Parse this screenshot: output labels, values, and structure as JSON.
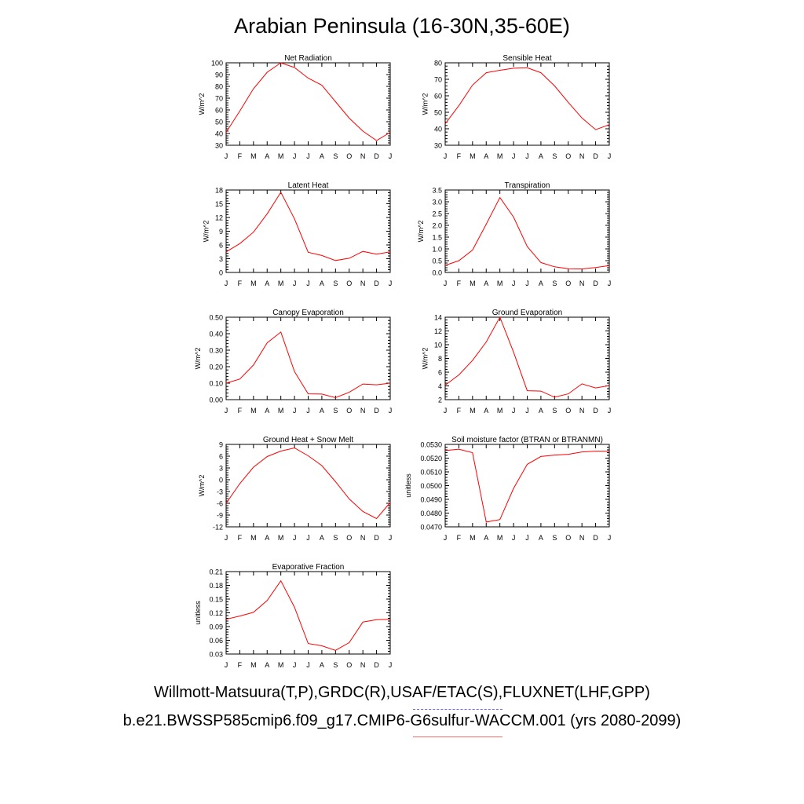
{
  "title": "Arabian Peninsula (16-30N,35-60E)",
  "footer": {
    "observations": "Willmott-Matsuura(T,P),GRDC(R),USAF/ETAC(S),FLUXNET(LHF,GPP)",
    "case": "b.e21.BWSSP585cmip6.f09_g17.CMIP6-G6sulfur-WACCM.001 (yrs 2080-2099)"
  },
  "colors": {
    "line": "#ff0000",
    "observations_legend": "#6a6aff",
    "case_legend": "#ff6a6a"
  },
  "chart_data": [
    {
      "type": "line",
      "title": "Net Radiation",
      "ylabel": "W/m^2",
      "categories": [
        "J",
        "F",
        "M",
        "A",
        "M",
        "J",
        "J",
        "A",
        "S",
        "O",
        "N",
        "D",
        "J"
      ],
      "ylim": [
        30,
        100
      ],
      "yticks": [
        "30",
        "40",
        "50",
        "60",
        "70",
        "80",
        "90",
        "100"
      ],
      "series": [
        {
          "values": [
            41,
            59,
            78,
            92,
            100,
            96,
            87,
            81,
            67,
            53,
            42,
            34,
            41
          ]
        }
      ]
    },
    {
      "type": "line",
      "title": "Sensible Heat",
      "ylabel": "W/m^2",
      "categories": [
        "J",
        "F",
        "M",
        "A",
        "M",
        "J",
        "J",
        "A",
        "S",
        "O",
        "N",
        "D",
        "J"
      ],
      "ylim": [
        30,
        80
      ],
      "yticks": [
        "30",
        "40",
        "50",
        "60",
        "70",
        "80"
      ],
      "series": [
        {
          "values": [
            43,
            54,
            66.5,
            74,
            75.5,
            76.7,
            77,
            74,
            66,
            56,
            46.5,
            39.5,
            42.5
          ]
        }
      ]
    },
    {
      "type": "line",
      "title": "Latent Heat",
      "ylabel": "W/m^2",
      "categories": [
        "J",
        "F",
        "M",
        "A",
        "M",
        "J",
        "J",
        "A",
        "S",
        "O",
        "N",
        "D",
        "J"
      ],
      "ylim": [
        0,
        18
      ],
      "yticks": [
        "0",
        "3",
        "6",
        "9",
        "12",
        "15",
        "18"
      ],
      "series": [
        {
          "values": [
            4.5,
            6.3,
            8.8,
            12.8,
            17.5,
            11.7,
            4.4,
            3.7,
            2.6,
            3.1,
            4.6,
            4.0,
            4.5
          ]
        }
      ]
    },
    {
      "type": "line",
      "title": "Transpiration",
      "ylabel": "W/m^2",
      "categories": [
        "J",
        "F",
        "M",
        "A",
        "M",
        "J",
        "J",
        "A",
        "S",
        "O",
        "N",
        "D",
        "J"
      ],
      "ylim": [
        0,
        3.5
      ],
      "yticks": [
        "0.0",
        "0.5",
        "1.0",
        "1.5",
        "2.0",
        "2.5",
        "3.0",
        "3.5"
      ],
      "series": [
        {
          "values": [
            0.3,
            0.5,
            0.95,
            2.05,
            3.18,
            2.35,
            1.1,
            0.42,
            0.24,
            0.16,
            0.15,
            0.21,
            0.29
          ]
        }
      ]
    },
    {
      "type": "line",
      "title": "Canopy Evaporation",
      "ylabel": "W/m^2",
      "categories": [
        "J",
        "F",
        "M",
        "A",
        "M",
        "J",
        "J",
        "A",
        "S",
        "O",
        "N",
        "D",
        "J"
      ],
      "ylim": [
        0,
        0.5
      ],
      "yticks": [
        "0.00",
        "0.10",
        "0.20",
        "0.30",
        "0.40",
        "0.50"
      ],
      "series": [
        {
          "values": [
            0.1,
            0.125,
            0.21,
            0.345,
            0.41,
            0.17,
            0.035,
            0.034,
            0.012,
            0.045,
            0.095,
            0.09,
            0.1
          ]
        }
      ]
    },
    {
      "type": "line",
      "title": "Ground Evaporation",
      "ylabel": "W/m^2",
      "categories": [
        "J",
        "F",
        "M",
        "A",
        "M",
        "J",
        "J",
        "A",
        "S",
        "O",
        "N",
        "D",
        "J"
      ],
      "ylim": [
        2,
        14
      ],
      "yticks": [
        "2",
        "4",
        "6",
        "8",
        "10",
        "12",
        "14"
      ],
      "series": [
        {
          "values": [
            4.1,
            5.6,
            7.7,
            10.4,
            14,
            8.9,
            3.3,
            3.25,
            2.35,
            2.85,
            4.3,
            3.7,
            4.05
          ]
        }
      ]
    },
    {
      "type": "line",
      "title": "Ground Heat + Snow Melt",
      "ylabel": "W/m^2",
      "categories": [
        "J",
        "F",
        "M",
        "A",
        "M",
        "J",
        "J",
        "A",
        "S",
        "O",
        "N",
        "D",
        "J"
      ],
      "ylim": [
        -12,
        9
      ],
      "yticks": [
        "-12",
        "-9",
        "-6",
        "-3",
        "0",
        "3",
        "6",
        "9"
      ],
      "series": [
        {
          "values": [
            -6,
            -1,
            3.2,
            5.9,
            7.3,
            8.1,
            6.1,
            3.6,
            -0.5,
            -4.9,
            -8.1,
            -9.9,
            -5.8
          ]
        }
      ]
    },
    {
      "type": "line",
      "title": "Soil moisture factor (BTRAN or BTRANMN)",
      "ylabel": "unitless",
      "categories": [
        "J",
        "F",
        "M",
        "A",
        "M",
        "J",
        "J",
        "A",
        "S",
        "O",
        "N",
        "D",
        "J"
      ],
      "ylim": [
        0.047,
        0.053
      ],
      "yticks": [
        "0.0470",
        "0.0480",
        "0.0490",
        "0.0500",
        "0.0510",
        "0.0520",
        "0.0530"
      ],
      "series": [
        {
          "values": [
            0.05255,
            0.05265,
            0.0524,
            0.04735,
            0.04753,
            0.0498,
            0.05155,
            0.05212,
            0.05222,
            0.05228,
            0.05245,
            0.05251,
            0.0525
          ]
        }
      ]
    },
    {
      "type": "line",
      "title": "Evaporative Fraction",
      "ylabel": "unitless",
      "categories": [
        "J",
        "F",
        "M",
        "A",
        "M",
        "J",
        "J",
        "A",
        "S",
        "O",
        "N",
        "D",
        "J"
      ],
      "ylim": [
        0.03,
        0.21
      ],
      "yticks": [
        "0.03",
        "0.06",
        "0.09",
        "0.12",
        "0.15",
        "0.18",
        "0.21"
      ],
      "series": [
        {
          "values": [
            0.106,
            0.113,
            0.121,
            0.147,
            0.19,
            0.132,
            0.053,
            0.048,
            0.038,
            0.055,
            0.1,
            0.105,
            0.106
          ]
        }
      ]
    }
  ]
}
